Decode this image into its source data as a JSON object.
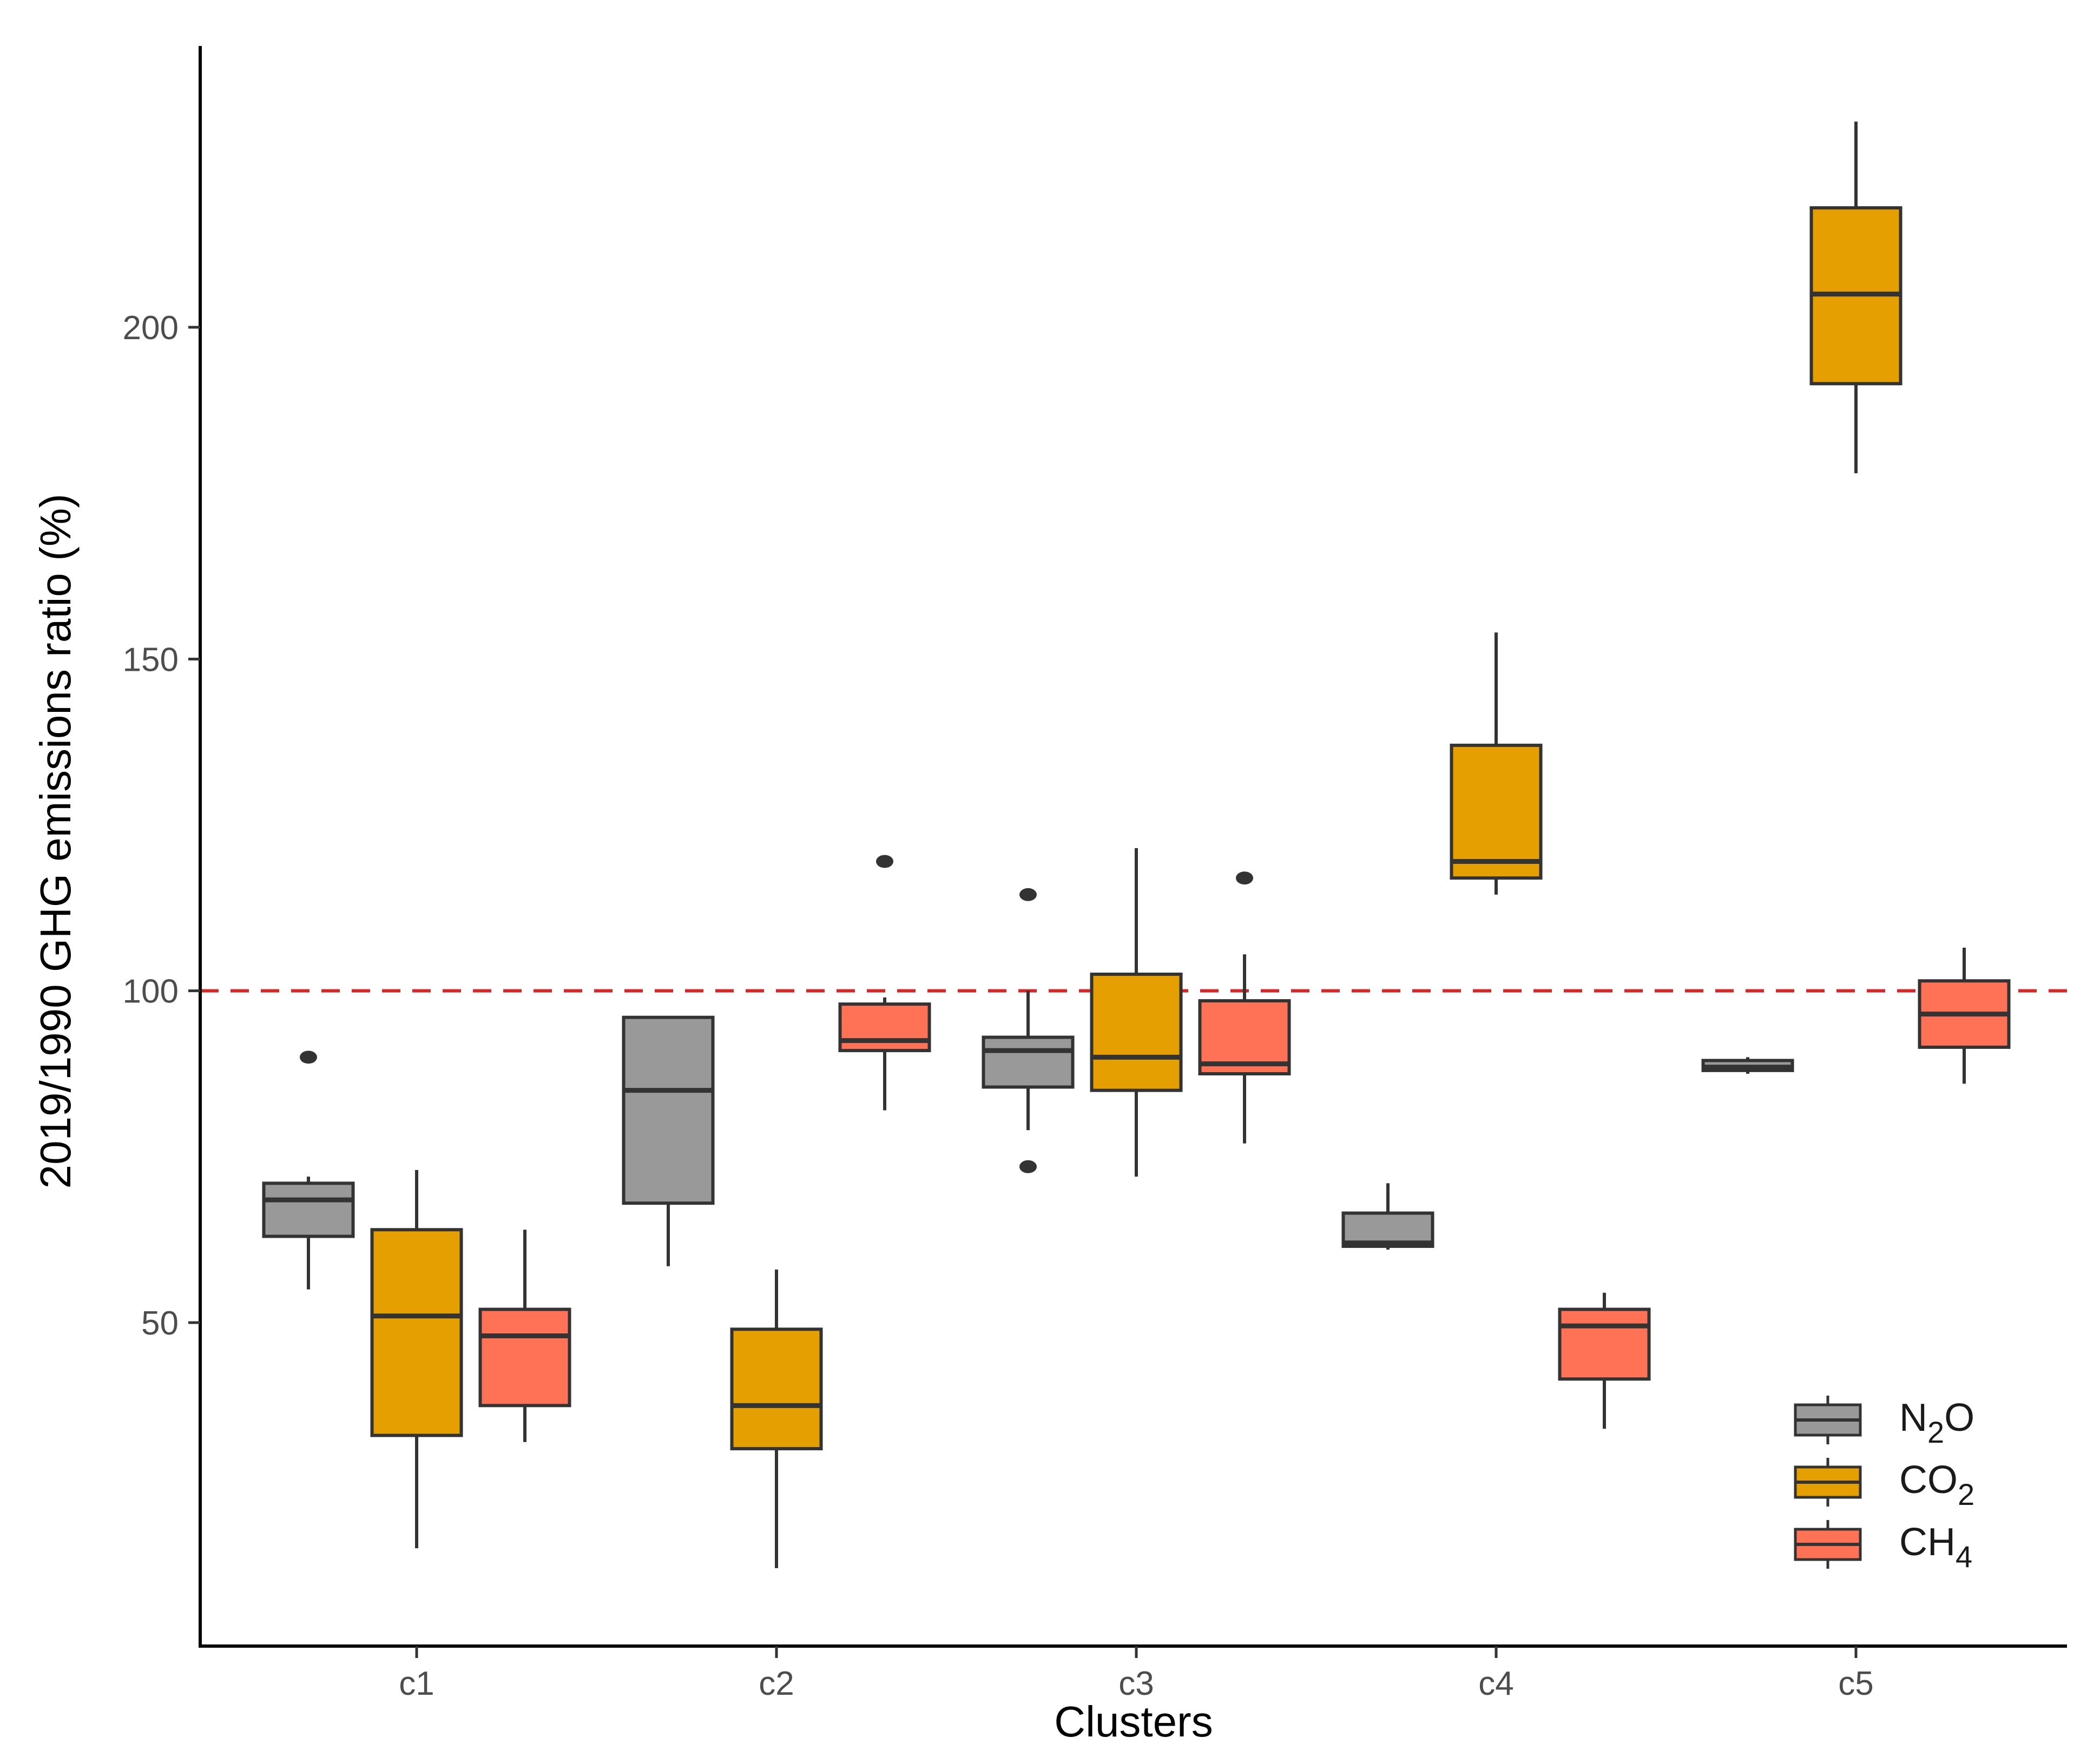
{
  "chart_data": {
    "type": "box",
    "title": "",
    "xlabel": "Clusters",
    "ylabel": "2019/1990 GHG emissions ratio (%)",
    "ylim": [
      7,
      243
    ],
    "yticks": [
      50,
      100,
      150,
      200
    ],
    "categories": [
      "c1",
      "c2",
      "c3",
      "c4",
      "c5"
    ],
    "reference_line": {
      "y": 100,
      "style": "dashed",
      "color": "#d62728"
    },
    "legend": {
      "placement": "bottom-right",
      "entries": [
        {
          "series": "N2O",
          "base": "N",
          "sub": "2",
          "tail": "O"
        },
        {
          "series": "CO2",
          "base": "CO",
          "sub": "2",
          "tail": ""
        },
        {
          "series": "CH4",
          "base": "CH",
          "sub": "4",
          "tail": ""
        }
      ]
    },
    "series": [
      {
        "name": "N2O",
        "color": "#999999",
        "boxes": [
          {
            "category": "c1",
            "min": 55,
            "q1": 63,
            "median": 68.5,
            "q3": 71,
            "max": 72,
            "outliers": [
              90
            ]
          },
          {
            "category": "c2",
            "min": 58.5,
            "q1": 68,
            "median": 85,
            "q3": 96,
            "max": 96,
            "outliers": []
          },
          {
            "category": "c3",
            "min": 79,
            "q1": 85.5,
            "median": 91,
            "q3": 93,
            "max": 100,
            "outliers": [
              114.5,
              73.5
            ]
          },
          {
            "category": "c4",
            "min": 61,
            "q1": 61.5,
            "median": 62,
            "q3": 66.5,
            "max": 71,
            "outliers": []
          },
          {
            "category": "c5",
            "min": 87.5,
            "q1": 88,
            "median": 88.5,
            "q3": 89.5,
            "max": 90,
            "outliers": []
          }
        ]
      },
      {
        "name": "CO2",
        "color": "#E69F00",
        "boxes": [
          {
            "category": "c1",
            "min": 16,
            "q1": 33,
            "median": 51,
            "q3": 64,
            "max": 73,
            "outliers": []
          },
          {
            "category": "c2",
            "min": 13,
            "q1": 31,
            "median": 37.5,
            "q3": 49,
            "max": 58,
            "outliers": []
          },
          {
            "category": "c3",
            "min": 72,
            "q1": 85,
            "median": 90,
            "q3": 102.5,
            "max": 121.5,
            "outliers": []
          },
          {
            "category": "c4",
            "min": 114.5,
            "q1": 117,
            "median": 119.5,
            "q3": 137,
            "max": 154,
            "outliers": []
          },
          {
            "category": "c5",
            "min": 178,
            "q1": 191.5,
            "median": 205,
            "q3": 218,
            "max": 231,
            "outliers": []
          }
        ]
      },
      {
        "name": "CH4",
        "color": "#FF7256",
        "boxes": [
          {
            "category": "c1",
            "min": 32,
            "q1": 37.5,
            "median": 48,
            "q3": 52,
            "max": 64,
            "outliers": []
          },
          {
            "category": "c2",
            "min": 82,
            "q1": 91,
            "median": 92.5,
            "q3": 98,
            "max": 99,
            "outliers": [
              119.5
            ]
          },
          {
            "category": "c3",
            "min": 77,
            "q1": 87.5,
            "median": 89,
            "q3": 98.5,
            "max": 105.5,
            "outliers": [
              117
            ]
          },
          {
            "category": "c4",
            "min": 34,
            "q1": 41.5,
            "median": 49.5,
            "q3": 52,
            "max": 54.5,
            "outliers": []
          },
          {
            "category": "c5",
            "min": 86,
            "q1": 91.5,
            "median": 96.5,
            "q3": 101.5,
            "max": 106.5,
            "outliers": []
          }
        ]
      }
    ]
  }
}
